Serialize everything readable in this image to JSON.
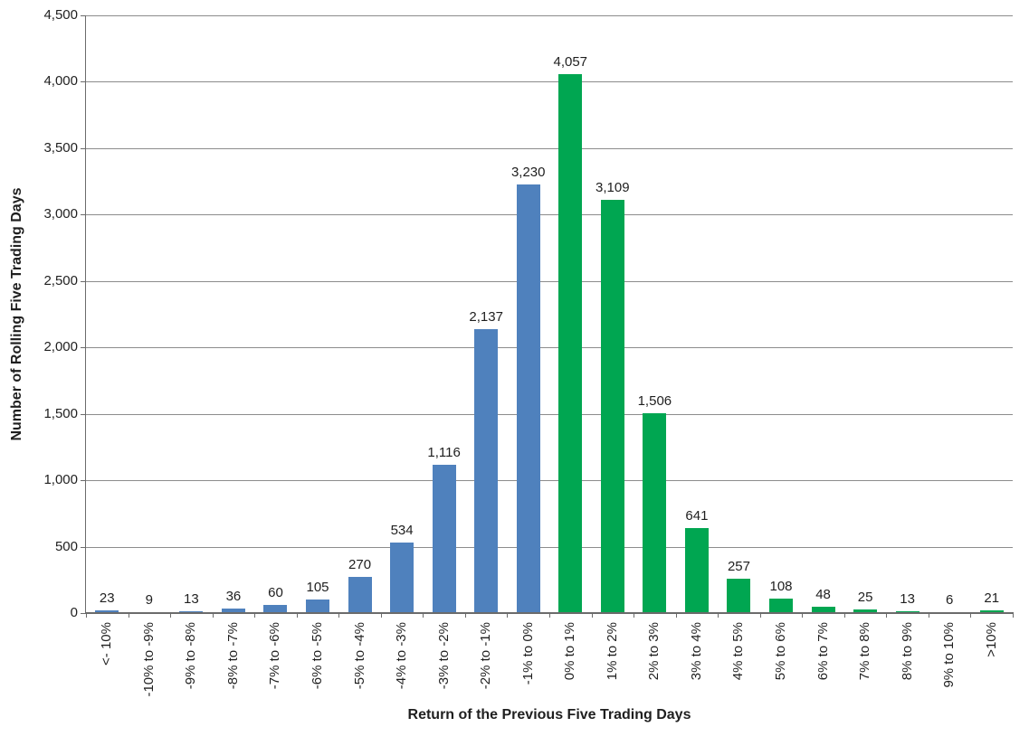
{
  "chart_data": {
    "type": "bar",
    "title": "",
    "xlabel": "Return of the Previous Five Trading Days",
    "ylabel": "Number of Rolling Five Trading Days",
    "ylim": [
      0,
      4500
    ],
    "ytick_step": 500,
    "ytick_labels": [
      "0",
      "500",
      "1,000",
      "1,500",
      "2,000",
      "2,500",
      "3,000",
      "3,500",
      "4,000",
      "4,500"
    ],
    "grid": "horizontal",
    "legend": "none",
    "categories": [
      "<- 10%",
      "-10% to -9%",
      "-9% to -8%",
      "-8% to -7%",
      "-7% to -6%",
      "-6% to -5%",
      "-5% to -4%",
      "-4% to -3%",
      "-3% to -2%",
      "-2% to -1%",
      "-1% to 0%",
      "0% to 1%",
      "1% to 2%",
      "2% to 3%",
      "3% to 4%",
      "4% to 5%",
      "5% to 6%",
      "6% to 7%",
      "7% to 8%",
      "8% to 9%",
      "9% to 10%",
      ">10%"
    ],
    "values": [
      23,
      9,
      13,
      36,
      60,
      105,
      270,
      534,
      1116,
      2137,
      3230,
      4057,
      3109,
      1506,
      641,
      257,
      108,
      48,
      25,
      13,
      6,
      21
    ],
    "value_labels": [
      "23",
      "9",
      "13",
      "36",
      "60",
      "105",
      "270",
      "534",
      "1,116",
      "2,137",
      "3,230",
      "4,057",
      "3,109",
      "1,506",
      "641",
      "257",
      "108",
      "48",
      "25",
      "13",
      "6",
      "21"
    ],
    "bar_colors": [
      "#4F81BD",
      "#4F81BD",
      "#4F81BD",
      "#4F81BD",
      "#4F81BD",
      "#4F81BD",
      "#4F81BD",
      "#4F81BD",
      "#4F81BD",
      "#4F81BD",
      "#4F81BD",
      "#00A651",
      "#00A651",
      "#00A651",
      "#00A651",
      "#00A651",
      "#00A651",
      "#00A651",
      "#00A651",
      "#00A651",
      "#00A651",
      "#00A651"
    ],
    "palette": {
      "negative_bars": "#4F81BD",
      "positive_bars": "#00A651"
    },
    "text_color": "#1F1F1F",
    "gridline_color": "#8C8C8C",
    "axis_color": "#6B6B6B"
  }
}
